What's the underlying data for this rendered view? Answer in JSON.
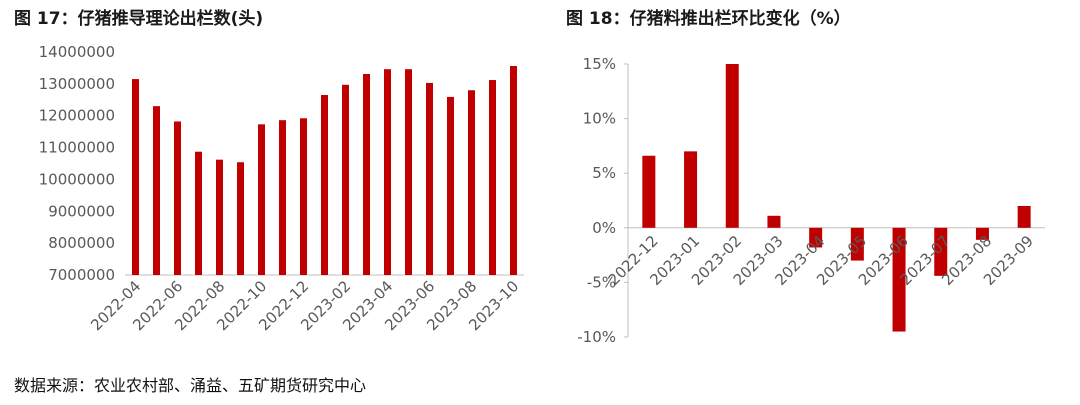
{
  "figures": {
    "left_title": "图 17：仔猪推导理论出栏数(头)",
    "right_title": "图 18：仔猪料推出栏环比变化（%）"
  },
  "source": "数据来源：农业农村部、涌益、五矿期货研究中心",
  "chart_data": [
    {
      "type": "bar",
      "title": "图 17：仔猪推导理论出栏数(头)",
      "bar_color": "#C00000",
      "ylim": [
        7000000,
        14000000
      ],
      "yticks": [
        7000000,
        8000000,
        9000000,
        10000000,
        11000000,
        12000000,
        13000000,
        14000000
      ],
      "ytick_labels": [
        "7000000",
        "8000000",
        "9000000",
        "10000000",
        "11000000",
        "12000000",
        "13000000",
        "14000000"
      ],
      "categories": [
        "2022-04",
        "2022-05",
        "2022-06",
        "2022-07",
        "2022-08",
        "2022-09",
        "2022-10",
        "2022-11",
        "2022-12",
        "2023-01",
        "2023-02",
        "2023-03",
        "2023-04",
        "2023-05",
        "2023-06",
        "2023-07",
        "2023-08",
        "2023-09",
        "2023-10"
      ],
      "xtick_labels": [
        "2022-04",
        "2022-06",
        "2022-08",
        "2022-10",
        "2022-12",
        "2023-02",
        "2023-04",
        "2023-06",
        "2023-08",
        "2023-10"
      ],
      "values": [
        13150000,
        12300000,
        11820000,
        10870000,
        10620000,
        10540000,
        11730000,
        11860000,
        11920000,
        12650000,
        12970000,
        13310000,
        13460000,
        13460000,
        13030000,
        12590000,
        12800000,
        13120000,
        13560000
      ],
      "grid": false
    },
    {
      "type": "bar",
      "title": "图 18：仔猪料推出栏环比变化（%）",
      "bar_color": "#C00000",
      "ylim": [
        -10,
        15
      ],
      "yticks": [
        -10,
        -5,
        0,
        5,
        10,
        15
      ],
      "ytick_labels": [
        "-10%",
        "-5%",
        "0%",
        "5%",
        "10%",
        "15%"
      ],
      "categories": [
        "2022-12",
        "2023-01",
        "2023-02",
        "2023-03",
        "2023-04",
        "2023-05",
        "2023-06",
        "2023-07",
        "2023-08",
        "2023-09"
      ],
      "values": [
        6.6,
        7.0,
        15.0,
        1.1,
        -1.8,
        -3.0,
        -9.5,
        -4.4,
        -1.1,
        2.0
      ],
      "grid": false
    }
  ]
}
